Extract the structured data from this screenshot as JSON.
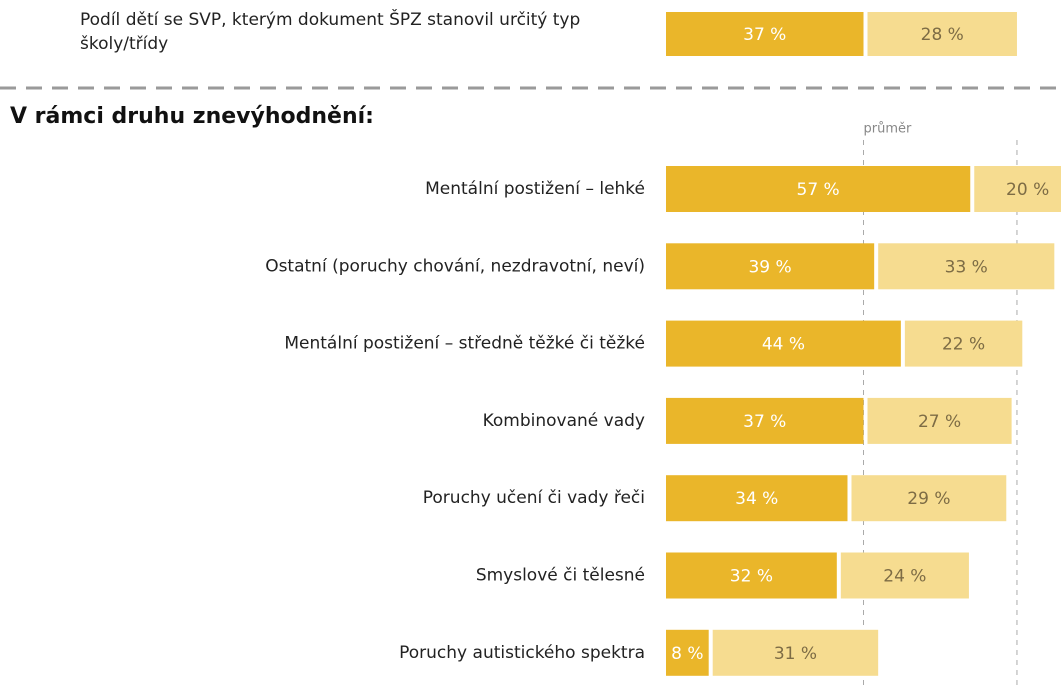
{
  "chart_data": {
    "type": "bar",
    "stacked": true,
    "orientation": "horizontal",
    "summary": {
      "category": "Podíl dětí se SVP, kterým dokument ŠPZ stanovil určitý typ školy/třídy",
      "values": [
        37,
        28
      ],
      "value_labels": [
        "37 %",
        "28 %"
      ]
    },
    "section_title": "V rámci druhu znevýhodnění:",
    "reference_label": "průměr",
    "categories": [
      "Mentální postižení – lehké",
      "Ostatní (poruchy chování, nezdravotní, neví)",
      "Mentální postižení – středně těžké či těžké",
      "Kombinované vady",
      "Poruchy učení či vady řeči",
      "Smyslové či tělesné",
      "Poruchy autistického spektra"
    ],
    "series": [
      {
        "color": "#eab62a",
        "label_color": "#ffffff",
        "values": [
          57,
          39,
          44,
          37,
          34,
          32,
          8
        ],
        "value_labels": [
          "57 %",
          "39 %",
          "44 %",
          "37 %",
          "34 %",
          "32 %",
          "8 %"
        ]
      },
      {
        "color": "#f6dc90",
        "label_color": "#7d6c45",
        "values": [
          20,
          33,
          22,
          27,
          29,
          24,
          31
        ],
        "value_labels": [
          "20 %",
          "33 %",
          "22 %",
          "27 %",
          "29 %",
          "24 %",
          "31 %"
        ]
      }
    ],
    "xlim": [
      0,
      74
    ]
  }
}
